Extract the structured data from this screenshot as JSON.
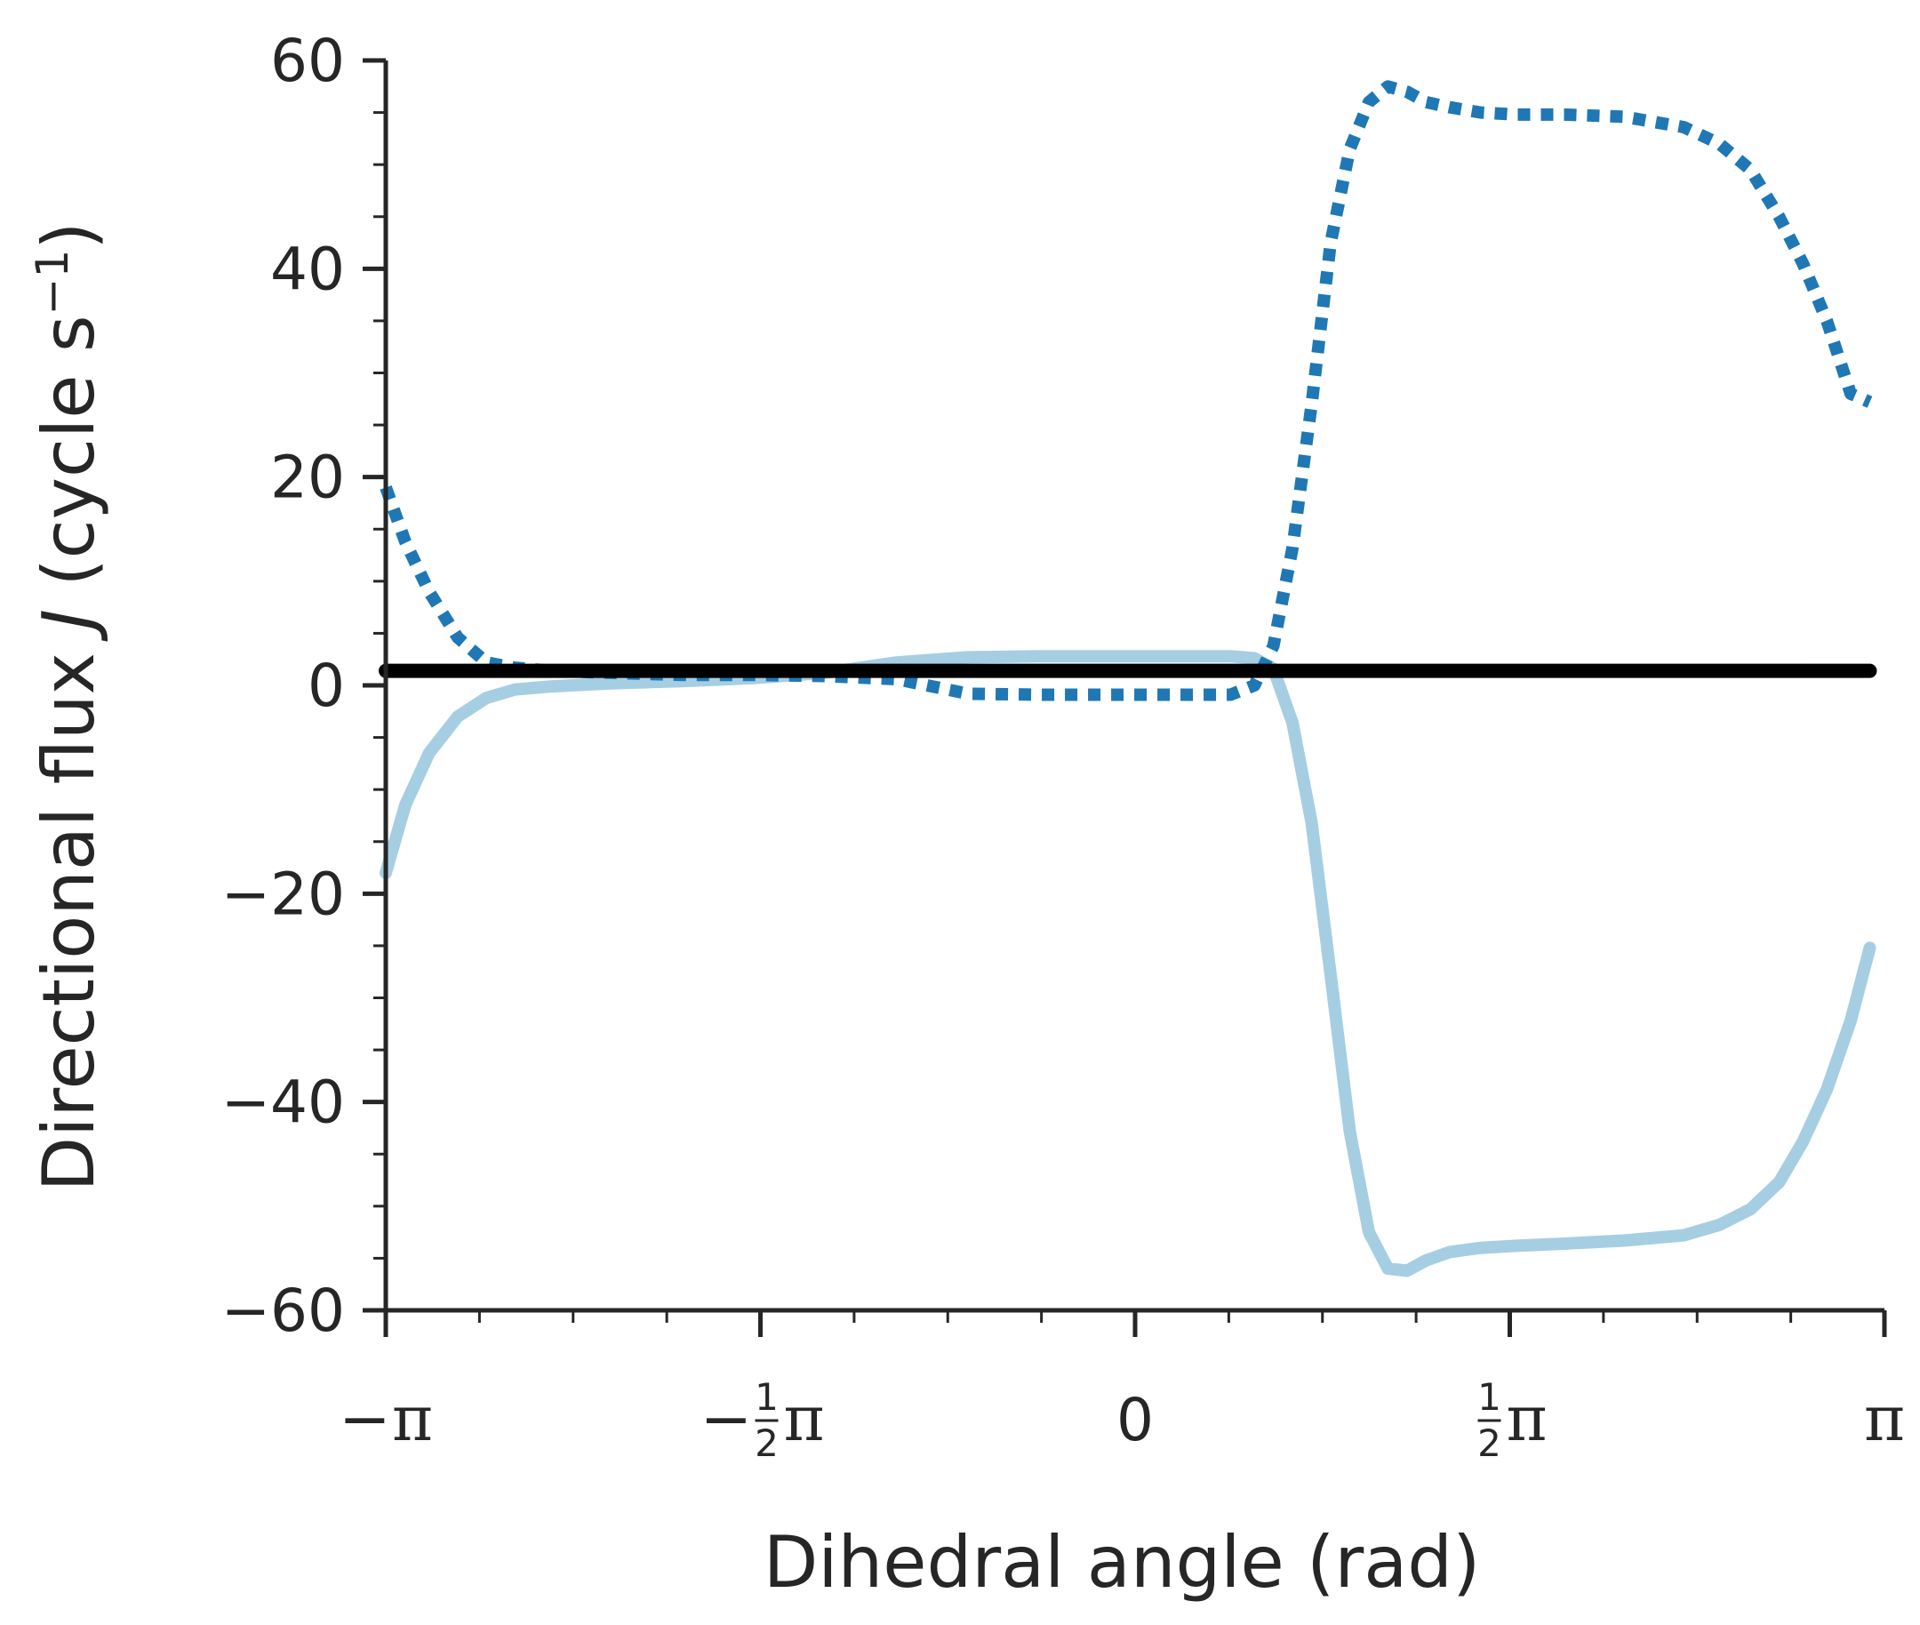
{
  "chart_data": {
    "type": "line",
    "xlabel": "Dihedral angle (rad)",
    "ylabel": "Directional flux J (cycle s⁻¹)",
    "ylabel_parts": {
      "before": "Directional flux ",
      "italic": "J",
      "middle": " (cycle s",
      "superscript": "−1",
      "after": ")"
    },
    "xlim": [
      -3.1416,
      3.1416
    ],
    "ylim": [
      -60,
      60
    ],
    "yticks": [
      60,
      40,
      20,
      0,
      -20,
      -40,
      -60
    ],
    "ytick_labels": [
      "60",
      "40",
      "20",
      "0",
      "−20",
      "−40",
      "−60"
    ],
    "y_minor_step": 5,
    "xticks": [
      {
        "value": -3.1416,
        "sign": "−",
        "frac_num": "",
        "frac_den": "",
        "pi": "π"
      },
      {
        "value": -1.5708,
        "sign": "−",
        "frac_num": "1",
        "frac_den": "2",
        "pi": "π"
      },
      {
        "value": 0,
        "sign": "",
        "frac_num": "",
        "frac_den": "",
        "pi": "",
        "plain": "0"
      },
      {
        "value": 1.5708,
        "sign": "",
        "frac_num": "1",
        "frac_den": "2",
        "pi": "π"
      },
      {
        "value": 3.1416,
        "sign": "",
        "frac_num": "",
        "frac_den": "",
        "pi": "π"
      }
    ],
    "x_minor_count": 16,
    "grid": false,
    "legend": "none",
    "series": [
      {
        "style": "solid",
        "color": "#a6cee3",
        "width": 14,
        "x": [
          -3.1416,
          -3.06,
          -2.96,
          -2.84,
          -2.72,
          -2.6,
          -2.45,
          -2.2,
          -1.9,
          -1.6,
          -1.3,
          -1.0,
          -0.7,
          -0.4,
          -0.1,
          0.2,
          0.4,
          0.5,
          0.58,
          0.66,
          0.74,
          0.82,
          0.9,
          0.98,
          1.06,
          1.14,
          1.22,
          1.32,
          1.45,
          1.6,
          1.8,
          2.05,
          2.3,
          2.45,
          2.58,
          2.7,
          2.8,
          2.9,
          3.0,
          3.08
        ],
        "y": [
          -18,
          -11.5,
          -6.5,
          -3.0,
          -1.2,
          -0.4,
          -0.1,
          0.2,
          0.4,
          0.7,
          1.2,
          2.2,
          2.7,
          2.8,
          2.8,
          2.8,
          2.8,
          2.6,
          1.6,
          -3.6,
          -13.2,
          -27.8,
          -42.8,
          -52.5,
          -56.0,
          -56.2,
          -55.2,
          -54.4,
          -54.0,
          -53.8,
          -53.6,
          -53.3,
          -52.8,
          -51.8,
          -50.3,
          -47.7,
          -43.8,
          -38.8,
          -32.2,
          -25.2
        ]
      },
      {
        "style": "dotted",
        "color": "#1f78b4",
        "width": 14,
        "x": [
          -3.1416,
          -3.06,
          -2.96,
          -2.84,
          -2.72,
          -2.6,
          -2.45,
          -2.2,
          -1.9,
          -1.6,
          -1.3,
          -1.0,
          -0.7,
          -0.4,
          -0.1,
          0.2,
          0.4,
          0.5,
          0.58,
          0.66,
          0.74,
          0.82,
          0.9,
          0.98,
          1.06,
          1.14,
          1.22,
          1.32,
          1.45,
          1.6,
          1.8,
          2.05,
          2.3,
          2.45,
          2.58,
          2.7,
          2.8,
          2.9,
          3.0,
          3.08
        ],
        "y": [
          19,
          13.8,
          9.0,
          4.6,
          2.2,
          1.7,
          1.4,
          1.2,
          1.0,
          1.0,
          0.9,
          0.6,
          -0.8,
          -0.9,
          -0.9,
          -0.9,
          -0.9,
          0.0,
          3.8,
          13.2,
          27.0,
          42.5,
          51.5,
          56.0,
          57.5,
          57.0,
          56.0,
          55.5,
          55.0,
          54.8,
          54.8,
          54.6,
          53.6,
          52.0,
          49.5,
          45.0,
          40.5,
          35.0,
          28.0,
          27.2
        ]
      },
      {
        "style": "solid",
        "color": "#000000",
        "width": 16,
        "x": [
          -3.1416,
          3.08
        ],
        "y": [
          1.4,
          1.4
        ]
      }
    ]
  }
}
